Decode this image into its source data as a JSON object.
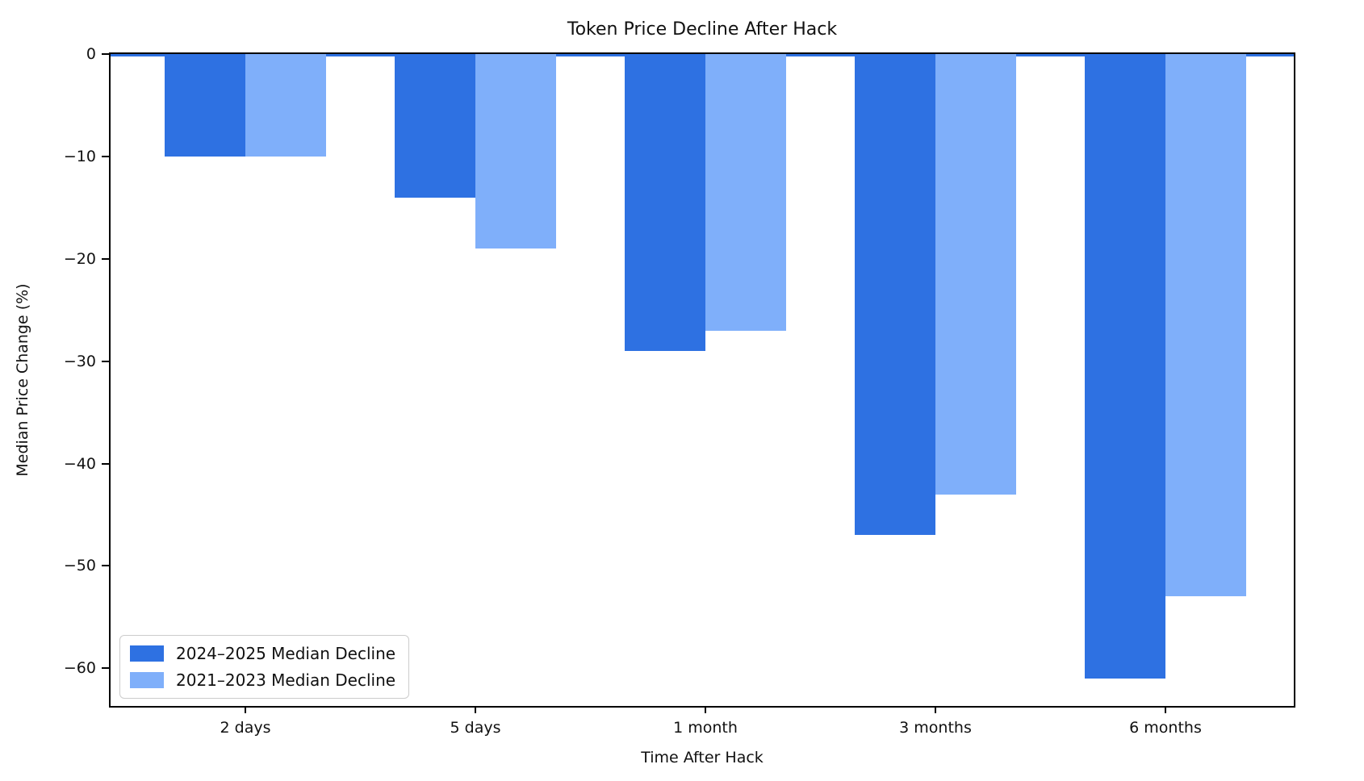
{
  "chart_data": {
    "type": "bar",
    "title": "Token Price Decline After Hack",
    "xlabel": "Time After Hack",
    "ylabel": "Median Price Change (%)",
    "categories": [
      "2 days",
      "5 days",
      "1 month",
      "3 months",
      "6 months"
    ],
    "series": [
      {
        "name": "2024–2025 Median Decline",
        "color": "#2E71E2",
        "values": [
          -10,
          -14,
          -29,
          -47,
          -61
        ]
      },
      {
        "name": "2021–2023 Median Decline",
        "color": "#7FAFFA",
        "values": [
          -10,
          -19,
          -27,
          -43,
          -53
        ]
      }
    ],
    "ylim": [
      -64,
      0
    ],
    "yticks": [
      0,
      -10,
      -20,
      -30,
      -40,
      -50,
      -60
    ],
    "legend_position": "lower left",
    "grid": false,
    "zero_line_color": "#2E71E2",
    "axis_color": "#000000",
    "background_color": "#ffffff"
  }
}
